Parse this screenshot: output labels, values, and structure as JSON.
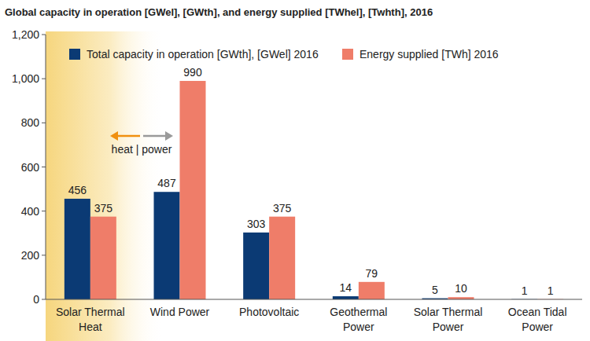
{
  "chart_data": {
    "type": "bar",
    "title": "Global capacity in operation [GWel], [GWth], and energy supplied [TWhel], [Twhth], 2016",
    "categories": [
      "Solar Thermal Heat",
      "Wind Power",
      "Photovoltaic",
      "Geothermal Power",
      "Solar Thermal Power",
      "Ocean Tidal Power"
    ],
    "series": [
      {
        "name": "Total capacity in operation [GWth], [GWel] 2016",
        "color": "#0b3a74",
        "values": [
          456,
          487,
          303,
          14,
          5,
          1
        ]
      },
      {
        "name": "Energy supplied [TWh] 2016",
        "color": "#ef7d69",
        "values": [
          375,
          990,
          375,
          79,
          10,
          1
        ]
      }
    ],
    "ylim": [
      0,
      1200
    ],
    "yticks": [
      0,
      200,
      400,
      600,
      800,
      {
        "value": 1000,
        "label": "1,000"
      },
      {
        "value": 1200,
        "label": "1,200"
      }
    ],
    "grid": false,
    "legend": "top",
    "data_labels": true,
    "annotations": [
      "heat | power"
    ]
  }
}
